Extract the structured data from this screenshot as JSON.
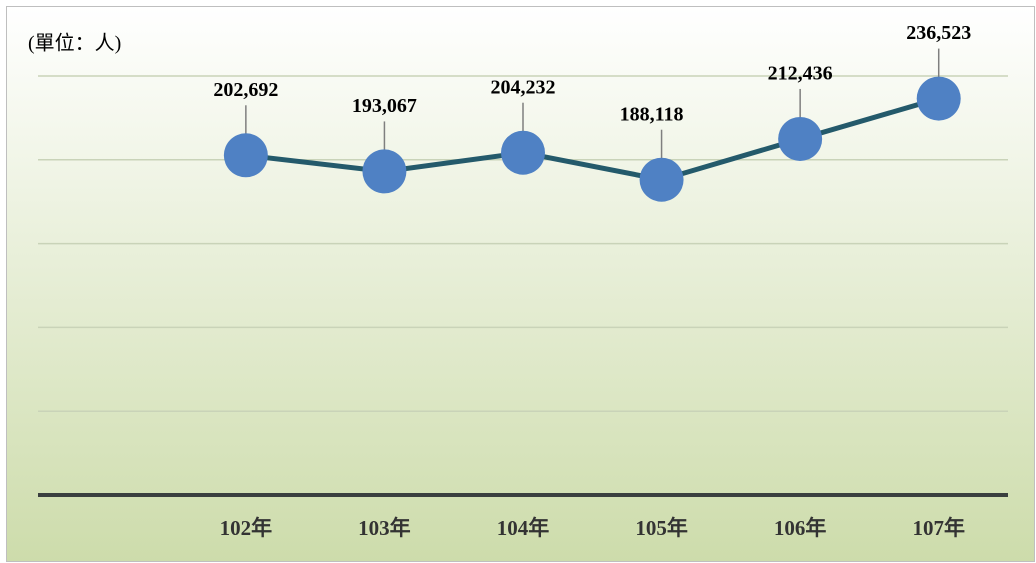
{
  "chart_data": {
    "type": "line",
    "y_label": "(單位：人)",
    "categories": [
      null,
      "102年",
      "103年",
      "104年",
      "105年",
      "106年",
      "107年"
    ],
    "series": [
      {
        "name": null,
        "color": "#245a6b",
        "marker_color": "#4f81c4",
        "values": [
          null,
          202692,
          193067,
          204232,
          188118,
          212436,
          236523
        ],
        "value_labels": [
          null,
          "202,692",
          "193,067",
          "204,232",
          "188,118",
          "212,436",
          "236,523"
        ]
      }
    ],
    "ylim": [
      0,
      250000
    ],
    "yticks": [
      0,
      50000,
      100000,
      150000,
      200000,
      250000
    ],
    "grid": true
  }
}
